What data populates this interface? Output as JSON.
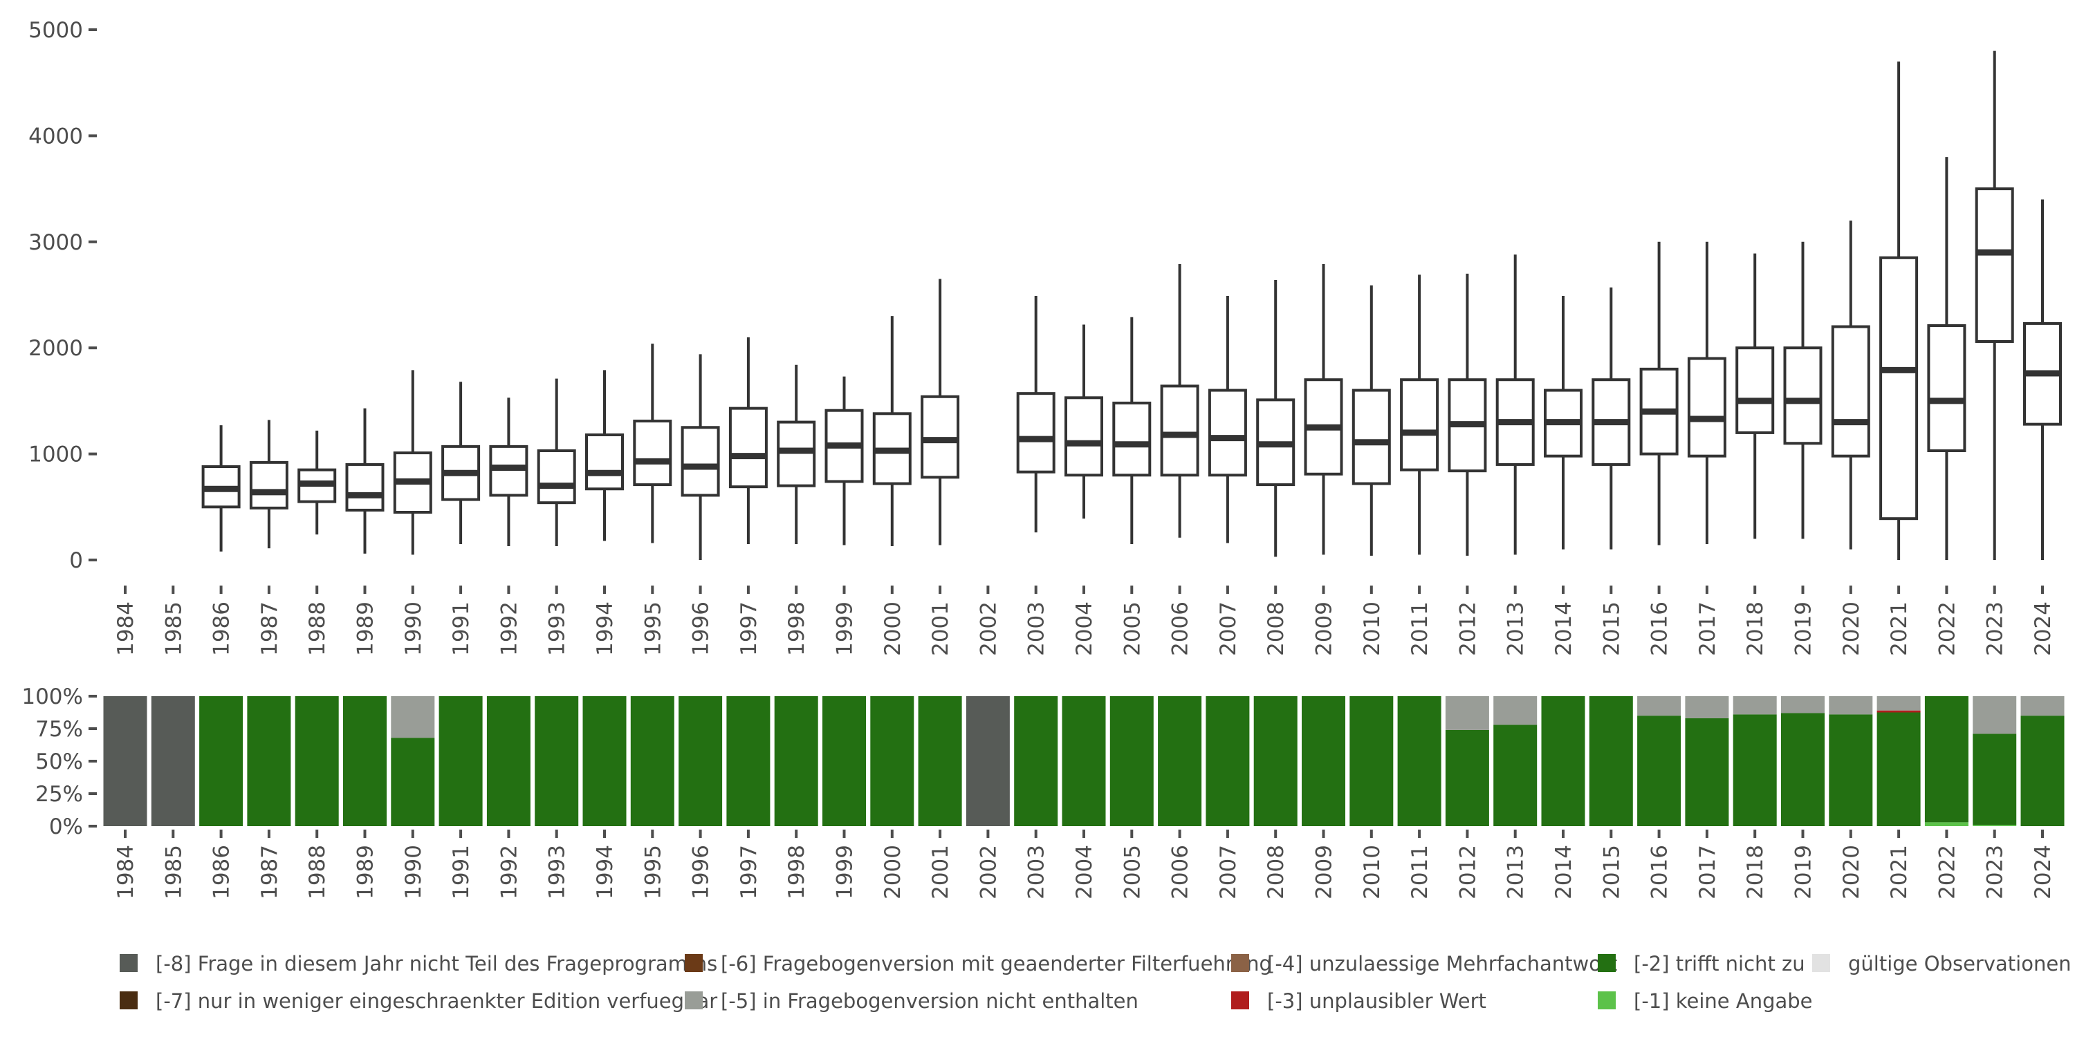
{
  "chart_data": [
    {
      "type": "boxplot",
      "ylim": [
        0,
        5000
      ],
      "yticks": [
        0,
        1000,
        2000,
        3000,
        4000,
        5000
      ],
      "ytick_labels": [
        "0",
        "1000",
        "2000",
        "3000",
        "4000",
        "5000"
      ],
      "categories": [
        "1984",
        "1985",
        "1986",
        "1987",
        "1988",
        "1989",
        "1990",
        "1991",
        "1992",
        "1993",
        "1994",
        "1995",
        "1996",
        "1997",
        "1998",
        "1999",
        "2000",
        "2001",
        "2002",
        "2003",
        "2004",
        "2005",
        "2006",
        "2007",
        "2008",
        "2009",
        "2010",
        "2011",
        "2012",
        "2013",
        "2014",
        "2015",
        "2016",
        "2017",
        "2018",
        "2019",
        "2020",
        "2021",
        "2022",
        "2023",
        "2024"
      ],
      "boxes": [
        null,
        null,
        {
          "low": 80,
          "q1": 500,
          "median": 670,
          "q3": 880,
          "high": 1270
        },
        {
          "low": 110,
          "q1": 490,
          "median": 640,
          "q3": 920,
          "high": 1320
        },
        {
          "low": 240,
          "q1": 550,
          "median": 720,
          "q3": 850,
          "high": 1220
        },
        {
          "low": 60,
          "q1": 470,
          "median": 610,
          "q3": 900,
          "high": 1430
        },
        {
          "low": 50,
          "q1": 450,
          "median": 740,
          "q3": 1010,
          "high": 1790
        },
        {
          "low": 150,
          "q1": 570,
          "median": 820,
          "q3": 1070,
          "high": 1680
        },
        {
          "low": 130,
          "q1": 610,
          "median": 870,
          "q3": 1070,
          "high": 1530
        },
        {
          "low": 130,
          "q1": 540,
          "median": 700,
          "q3": 1030,
          "high": 1710
        },
        {
          "low": 180,
          "q1": 670,
          "median": 820,
          "q3": 1180,
          "high": 1790
        },
        {
          "low": 160,
          "q1": 710,
          "median": 930,
          "q3": 1310,
          "high": 2040
        },
        {
          "low": 0,
          "q1": 610,
          "median": 880,
          "q3": 1250,
          "high": 1940
        },
        {
          "low": 150,
          "q1": 690,
          "median": 980,
          "q3": 1430,
          "high": 2100
        },
        {
          "low": 150,
          "q1": 700,
          "median": 1030,
          "q3": 1300,
          "high": 1840
        },
        {
          "low": 140,
          "q1": 740,
          "median": 1080,
          "q3": 1410,
          "high": 1730
        },
        {
          "low": 130,
          "q1": 720,
          "median": 1030,
          "q3": 1380,
          "high": 2300
        },
        {
          "low": 140,
          "q1": 780,
          "median": 1130,
          "q3": 1540,
          "high": 2650
        },
        null,
        {
          "low": 260,
          "q1": 830,
          "median": 1140,
          "q3": 1570,
          "high": 2490
        },
        {
          "low": 390,
          "q1": 800,
          "median": 1100,
          "q3": 1530,
          "high": 2220
        },
        {
          "low": 150,
          "q1": 800,
          "median": 1090,
          "q3": 1480,
          "high": 2290
        },
        {
          "low": 210,
          "q1": 800,
          "median": 1180,
          "q3": 1640,
          "high": 2790
        },
        {
          "low": 160,
          "q1": 800,
          "median": 1150,
          "q3": 1600,
          "high": 2490
        },
        {
          "low": 30,
          "q1": 710,
          "median": 1090,
          "q3": 1510,
          "high": 2640
        },
        {
          "low": 50,
          "q1": 810,
          "median": 1250,
          "q3": 1700,
          "high": 2790
        },
        {
          "low": 40,
          "q1": 720,
          "median": 1110,
          "q3": 1600,
          "high": 2590
        },
        {
          "low": 50,
          "q1": 850,
          "median": 1200,
          "q3": 1700,
          "high": 2690
        },
        {
          "low": 40,
          "q1": 840,
          "median": 1280,
          "q3": 1700,
          "high": 2700
        },
        {
          "low": 50,
          "q1": 900,
          "median": 1300,
          "q3": 1700,
          "high": 2880
        },
        {
          "low": 100,
          "q1": 980,
          "median": 1300,
          "q3": 1600,
          "high": 2490
        },
        {
          "low": 100,
          "q1": 900,
          "median": 1300,
          "q3": 1700,
          "high": 2570
        },
        {
          "low": 140,
          "q1": 1000,
          "median": 1400,
          "q3": 1800,
          "high": 3000
        },
        {
          "low": 150,
          "q1": 980,
          "median": 1330,
          "q3": 1900,
          "high": 3000
        },
        {
          "low": 200,
          "q1": 1200,
          "median": 1500,
          "q3": 2000,
          "high": 2890
        },
        {
          "low": 200,
          "q1": 1100,
          "median": 1500,
          "q3": 2000,
          "high": 3000
        },
        {
          "low": 100,
          "q1": 980,
          "median": 1300,
          "q3": 2200,
          "high": 3200
        },
        {
          "low": 0,
          "q1": 390,
          "median": 1790,
          "q3": 2850,
          "high": 4700
        },
        {
          "low": 0,
          "q1": 1030,
          "median": 1500,
          "q3": 2210,
          "high": 3800
        },
        {
          "low": 0,
          "q1": 2060,
          "median": 2900,
          "q3": 3500,
          "high": 4800
        },
        {
          "low": 0,
          "q1": 1280,
          "median": 1760,
          "q3": 2230,
          "high": 3400
        }
      ]
    },
    {
      "type": "stacked_bar",
      "ylim": [
        0,
        100
      ],
      "yticks": [
        0,
        25,
        50,
        75,
        100
      ],
      "ytick_labels": [
        "0%",
        "25%",
        "50%",
        "75%",
        "100%"
      ],
      "categories": [
        "1984",
        "1985",
        "1986",
        "1987",
        "1988",
        "1989",
        "1990",
        "1991",
        "1992",
        "1993",
        "1994",
        "1995",
        "1996",
        "1997",
        "1998",
        "1999",
        "2000",
        "2001",
        "2002",
        "2003",
        "2004",
        "2005",
        "2006",
        "2007",
        "2008",
        "2009",
        "2010",
        "2011",
        "2012",
        "2013",
        "2014",
        "2015",
        "2016",
        "2017",
        "2018",
        "2019",
        "2020",
        "2021",
        "2022",
        "2023",
        "2024"
      ],
      "series": [
        {
          "name": "[-8] Frage in diesem Jahr nicht Teil des Frageprogramms",
          "color": "#575b57",
          "values": [
            100,
            100,
            0,
            0,
            0,
            0,
            0,
            0,
            0,
            0,
            0,
            0,
            0,
            0,
            0,
            0,
            0,
            0,
            100,
            0,
            0,
            0,
            0,
            0,
            0,
            0,
            0,
            0,
            0,
            0,
            0,
            0,
            0,
            0,
            0,
            0,
            0,
            0,
            0,
            0,
            0
          ]
        },
        {
          "name": "[-7] nur in weniger eingeschraenkter Edition verfuegbar",
          "color": "#4a2d12",
          "values": [
            0,
            0,
            0,
            0,
            0,
            0,
            0,
            0,
            0,
            0,
            0,
            0,
            0,
            0,
            0,
            0,
            0,
            0,
            0,
            0,
            0,
            0,
            0,
            0,
            0,
            0,
            0,
            0,
            0,
            0,
            0,
            0,
            0,
            0,
            0,
            0,
            0,
            0,
            0,
            0,
            0
          ]
        },
        {
          "name": "[-6] Fragebogenversion mit geaenderter Filterfuehrung",
          "color": "#6b3a17",
          "values": [
            0,
            0,
            0,
            0,
            0,
            0,
            0,
            0,
            0,
            0,
            0,
            0,
            0,
            0,
            0,
            0,
            0,
            0,
            0,
            0,
            0,
            0,
            0,
            0,
            0,
            0,
            0,
            0,
            0,
            0,
            0,
            0,
            0,
            0,
            0,
            0,
            0,
            0,
            0,
            0,
            0
          ]
        },
        {
          "name": "[-5] in Fragebogenversion nicht enthalten",
          "color": "#999d97",
          "values": [
            0,
            0,
            0,
            0,
            0,
            0,
            32,
            0,
            0,
            0,
            0,
            0,
            0,
            0,
            0,
            0,
            0,
            0,
            0,
            0,
            0,
            0,
            0,
            0,
            0,
            0,
            0,
            0,
            26,
            22,
            0,
            0,
            15,
            17,
            14,
            13,
            14,
            11,
            0,
            29,
            15
          ]
        },
        {
          "name": "[-4] unzulaessige Mehrfachantwort",
          "color": "#8b6246",
          "values": [
            0,
            0,
            0,
            0,
            0,
            0,
            0,
            0,
            0,
            0,
            0,
            0,
            0,
            0,
            0,
            0,
            0,
            0,
            0,
            0,
            0,
            0,
            0,
            0,
            0,
            0,
            0,
            0,
            0,
            0,
            0,
            0,
            0,
            0,
            0,
            0,
            0,
            0,
            0,
            0,
            0
          ]
        },
        {
          "name": "[-3] unplausibler Wert",
          "color": "#b01d1d",
          "values": [
            0,
            0,
            0,
            0,
            0,
            0,
            0,
            0,
            0,
            0,
            0,
            0,
            0,
            0,
            0,
            0,
            0,
            0,
            0,
            0,
            0,
            0,
            0,
            0,
            0,
            0,
            0,
            0,
            0,
            0,
            0,
            0,
            0,
            0,
            0,
            0,
            0,
            1.5,
            0,
            0,
            0
          ]
        },
        {
          "name": "[-2] trifft nicht zu",
          "color": "#237012",
          "values": [
            0,
            0,
            100,
            100,
            100,
            100,
            68,
            100,
            100,
            100,
            100,
            100,
            100,
            100,
            100,
            100,
            100,
            100,
            0,
            100,
            100,
            100,
            100,
            100,
            100,
            100,
            100,
            100,
            74,
            78,
            100,
            100,
            85,
            83,
            86,
            87,
            86,
            87.5,
            97,
            70,
            85
          ]
        },
        {
          "name": "[-1] keine Angabe",
          "color": "#5cc24a",
          "values": [
            0,
            0,
            0,
            0,
            0,
            0,
            0,
            0,
            0,
            0,
            0,
            0,
            0,
            0,
            0,
            0,
            0,
            0,
            0,
            0,
            0,
            0,
            0,
            0,
            0,
            0,
            0,
            0,
            0,
            0,
            0,
            0,
            0,
            0,
            0,
            0,
            0,
            0,
            3,
            1,
            0
          ]
        },
        {
          "name": "gültige Observationen",
          "color": "#e2e2e2",
          "values": [
            0,
            0,
            0,
            0,
            0,
            0,
            0,
            0,
            0,
            0,
            0,
            0,
            0,
            0,
            0,
            0,
            0,
            0,
            0,
            0,
            0,
            0,
            0,
            0,
            0,
            0,
            0,
            0,
            0,
            0,
            0,
            0,
            0,
            0,
            0,
            0,
            0,
            0,
            0,
            0,
            0
          ]
        }
      ],
      "legend_position": "bottom"
    }
  ]
}
